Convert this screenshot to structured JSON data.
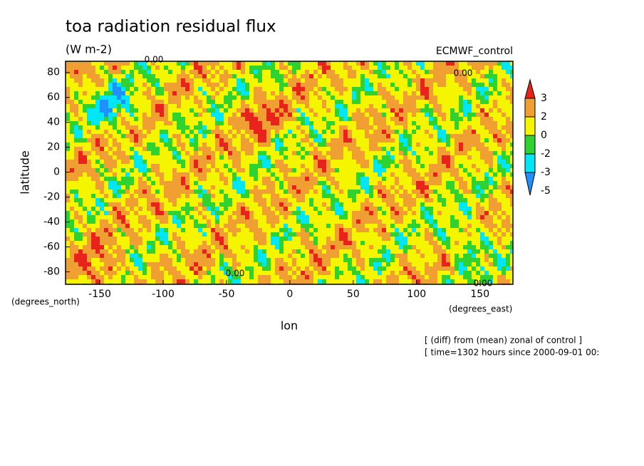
{
  "chart_data": {
    "type": "contour",
    "title": "toa radiation residual flux",
    "subtitle": "(W m-2)",
    "experiment": "ECMWF_control",
    "x_label": "lon",
    "y_label": "latitude",
    "x_unit": "(degrees_east)",
    "y_unit": "(degrees_north)",
    "xlim": [
      -177,
      176
    ],
    "ylim": [
      -90,
      89
    ],
    "xticks": [
      -150,
      -100,
      -50,
      0,
      50,
      100,
      150
    ],
    "yticks": [
      -80,
      -60,
      -40,
      -20,
      0,
      20,
      40,
      60,
      80
    ],
    "colorbar": {
      "levels": [
        3,
        2,
        0,
        -2,
        -3,
        -5
      ],
      "colors": [
        "#e8231c",
        "#f0a032",
        "#f5f500",
        "#2fd22f",
        "#00e6f5",
        "#2090ff"
      ]
    },
    "contour_labels": [
      "0.00",
      "0.00",
      "0.00",
      "0.00"
    ],
    "footer": [
      "[ (diff) from (mean) zonal of control ]",
      "[ time=1302 hours since 2000-09-01 00:"
    ]
  }
}
